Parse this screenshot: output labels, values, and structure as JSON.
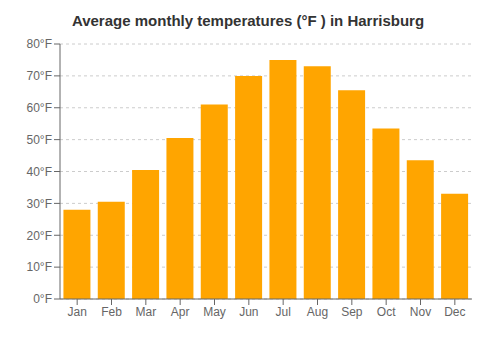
{
  "chart_data": {
    "type": "bar",
    "title": "Average monthly temperatures (°F ) in Harrisburg",
    "categories": [
      "Jan",
      "Feb",
      "Mar",
      "Apr",
      "May",
      "Jun",
      "Jul",
      "Aug",
      "Sep",
      "Oct",
      "Nov",
      "Dec"
    ],
    "values": [
      28,
      30.5,
      40.5,
      50.5,
      61,
      70,
      75,
      73,
      65.5,
      53.5,
      43.5,
      33
    ],
    "color": "#FFA500",
    "ylim": [
      0,
      80
    ],
    "yticks": [
      {
        "value": 0,
        "label": "0°F"
      },
      {
        "value": 10,
        "label": "10°F"
      },
      {
        "value": 20,
        "label": "20°F"
      },
      {
        "value": 30,
        "label": "30°F"
      },
      {
        "value": 40,
        "label": "40°F"
      },
      {
        "value": 50,
        "label": "50°F"
      },
      {
        "value": 60,
        "label": "60°F"
      },
      {
        "value": 70,
        "label": "70°F"
      },
      {
        "value": 80,
        "label": "80°F"
      }
    ],
    "grid": true
  }
}
